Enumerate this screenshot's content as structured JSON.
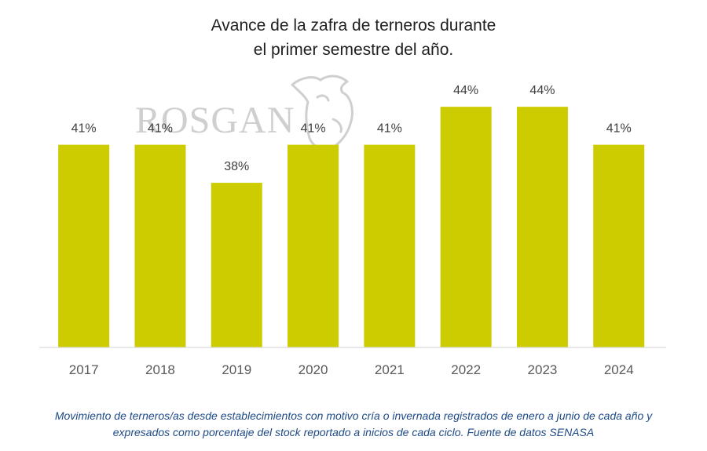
{
  "chart_data": {
    "type": "bar",
    "title_line1": "Avance de la zafra de terneros durante",
    "title_line2": "el primer semestre del año.",
    "categories": [
      "2017",
      "2018",
      "2019",
      "2020",
      "2021",
      "2022",
      "2023",
      "2024"
    ],
    "values": [
      41,
      41,
      38,
      41,
      41,
      44,
      44,
      41
    ],
    "value_labels": [
      "41%",
      "41%",
      "38%",
      "41%",
      "41%",
      "44%",
      "44%",
      "41%"
    ],
    "unit": "%",
    "ylim": [
      25,
      45
    ],
    "grid": false,
    "legend": "none",
    "bar_color": "#cccc00",
    "axis_color": "#d9d9d9"
  },
  "logo": {
    "text": "ROSGAN",
    "color": "#cfcfcf"
  },
  "caption": {
    "line1": "Movimiento de terneros/as desde establecimientos con motivo cría o invernada registrados de enero a junio de cada año y",
    "line2": "expresados como porcentaje del stock reportado a inicios de cada ciclo. Fuente de datos SENASA"
  }
}
